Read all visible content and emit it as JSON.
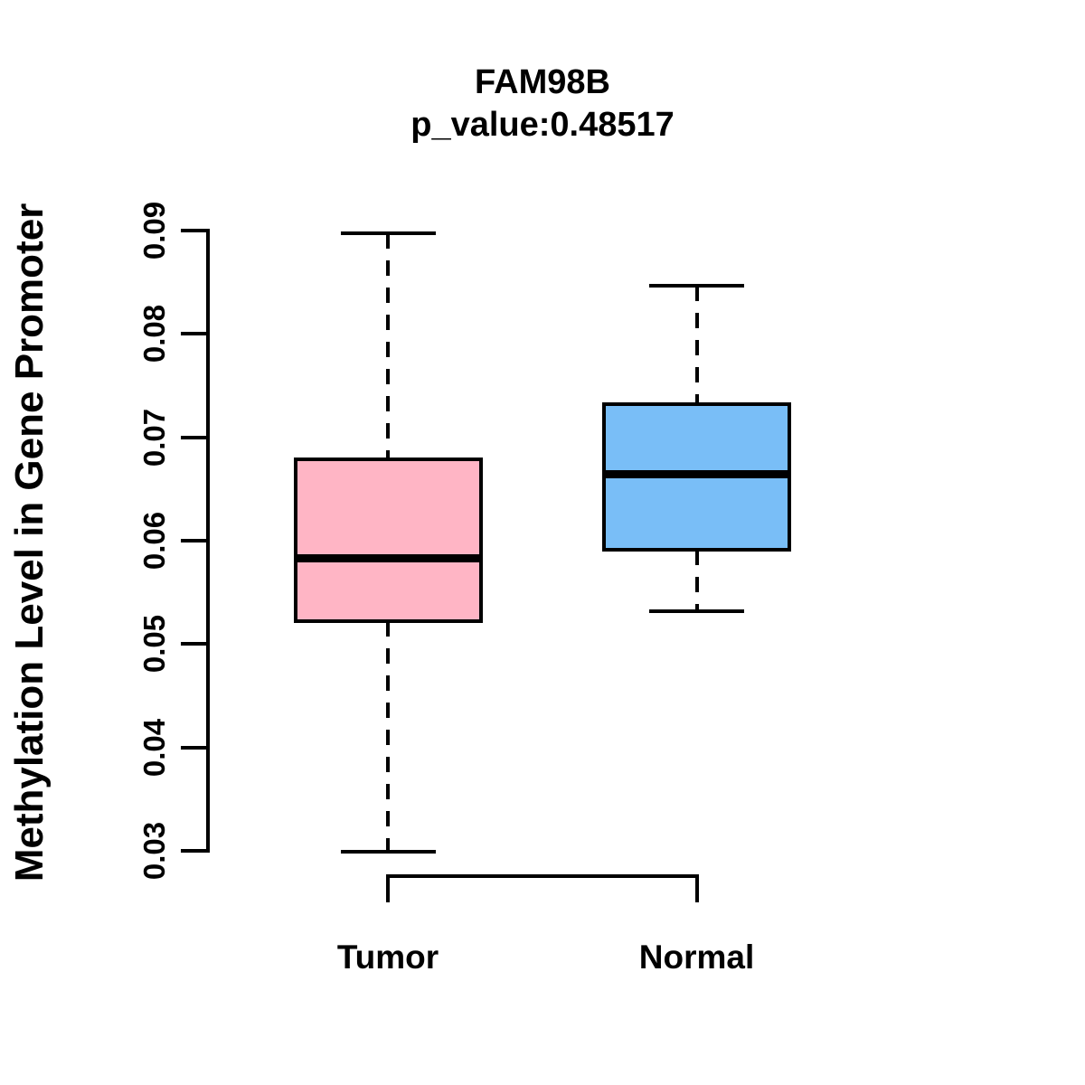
{
  "chart_data": {
    "type": "boxplot",
    "title": "FAM98B",
    "subtitle": "p_value:0.48517",
    "ylabel": "Methylation Level in Gene Promoter",
    "ylim": [
      0.03,
      0.09
    ],
    "y_ticks": [
      "0.03",
      "0.04",
      "0.05",
      "0.06",
      "0.07",
      "0.08",
      "0.09"
    ],
    "categories": [
      "Tumor",
      "Normal"
    ],
    "series": [
      {
        "name": "Tumor",
        "fill_color": "#FFB5C5",
        "whisker_low": 0.0299,
        "q1": 0.0522,
        "median": 0.0583,
        "q3": 0.0679,
        "whisker_high": 0.0897
      },
      {
        "name": "Normal",
        "fill_color": "#79BEF7",
        "whisker_low": 0.0532,
        "q1": 0.0591,
        "median": 0.0664,
        "q3": 0.0732,
        "whisker_high": 0.0847
      }
    ],
    "comparison_bracket": {
      "between": [
        "Tumor",
        "Normal"
      ]
    },
    "grid": false,
    "legend": false,
    "outline_color": "#000000",
    "background_color": "#FFFFFF"
  }
}
